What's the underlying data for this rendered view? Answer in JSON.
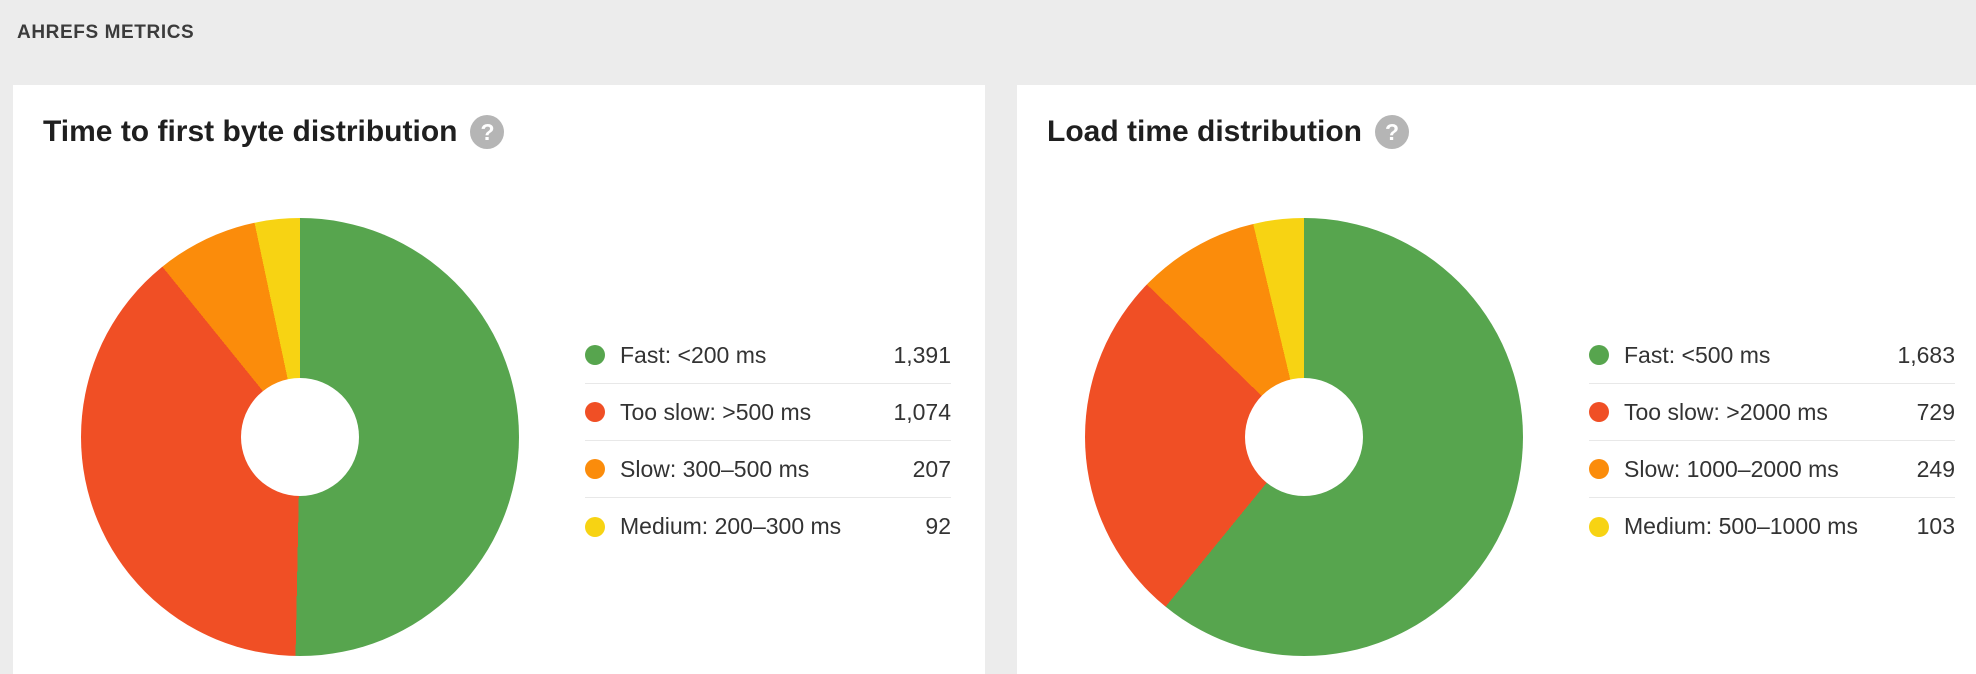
{
  "header": {
    "label": "AHREFS METRICS"
  },
  "icons": {
    "help": "?"
  },
  "colors": {
    "page_background": "#ececec",
    "card_background": "#ffffff",
    "fast_green": "#57a54e",
    "too_slow_red": "#f04f25",
    "slow_orange": "#fb8c0b",
    "medium_yellow": "#f7d313",
    "separator": "#e8e8e8",
    "help_icon_gray": "#b5b5b5"
  },
  "chart_data": [
    {
      "type": "pie",
      "style": "donut",
      "title": "Time to first byte distribution",
      "legend_position": "right",
      "clockwise_from_top": true,
      "series": [
        {
          "label": "Fast: <200 ms",
          "value": 1391,
          "value_display": "1,391",
          "color": "#57a54e"
        },
        {
          "label": "Too slow: >500 ms",
          "value": 1074,
          "value_display": "1,074",
          "color": "#f04f25"
        },
        {
          "label": "Slow: 300–500 ms",
          "value": 207,
          "value_display": "207",
          "color": "#fb8c0b"
        },
        {
          "label": "Medium: 200–300 ms",
          "value": 92,
          "value_display": "92",
          "color": "#f7d313"
        }
      ]
    },
    {
      "type": "pie",
      "style": "donut",
      "title": "Load time distribution",
      "legend_position": "right",
      "clockwise_from_top": true,
      "series": [
        {
          "label": "Fast: <500 ms",
          "value": 1683,
          "value_display": "1,683",
          "color": "#57a54e"
        },
        {
          "label": "Too slow: >2000 ms",
          "value": 729,
          "value_display": "729",
          "color": "#f04f25"
        },
        {
          "label": "Slow: 1000–2000 ms",
          "value": 249,
          "value_display": "249",
          "color": "#fb8c0b"
        },
        {
          "label": "Medium: 500–1000 ms",
          "value": 103,
          "value_display": "103",
          "color": "#f7d313"
        }
      ]
    }
  ]
}
